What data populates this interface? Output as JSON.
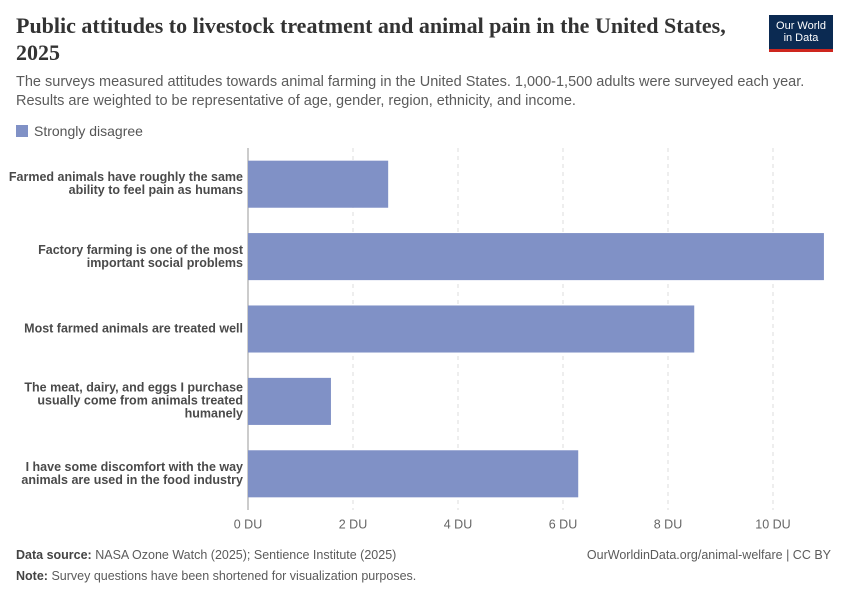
{
  "chart_data": {
    "type": "bar",
    "orientation": "horizontal",
    "title": "Public attitudes to livestock treatment and animal pain in the United States, 2025",
    "subtitle": "The surveys measured attitudes towards animal farming in the United States. 1,000-1,500 adults were surveyed each year. Results are weighted to be representative of age, gender, region, ethnicity, and income.",
    "logo": [
      "Our World",
      "in Data"
    ],
    "categories": [
      "Farmed animals have roughly the same ability to feel pain as humans",
      "Factory farming is one of the most important social problems",
      "Most farmed animals are treated well",
      "The meat, dairy, and eggs I purchase usually come from animals treated humanely",
      "I have some discomfort with the way animals are used in the food industry"
    ],
    "series": [
      {
        "name": "Strongly disagree",
        "color": "#8091c6",
        "values": [
          2.67,
          10.97,
          8.5,
          1.58,
          6.29
        ]
      }
    ],
    "xlim": [
      0,
      11
    ],
    "xticks": [
      {
        "value": 0,
        "label": "0 DU"
      },
      {
        "value": 2,
        "label": "2 DU"
      },
      {
        "value": 4,
        "label": "4 DU"
      },
      {
        "value": 6,
        "label": "6 DU"
      },
      {
        "value": 8,
        "label": "8 DU"
      },
      {
        "value": 10,
        "label": "10 DU"
      }
    ],
    "grid": true,
    "source_label": "Data source:",
    "source": "NASA Ozone Watch (2025); Sentience Institute (2025)",
    "url": "OurWorldinData.org/animal-welfare | CC BY",
    "note_label": "Note:",
    "note": "Survey questions have been shortened for visualization purposes."
  }
}
